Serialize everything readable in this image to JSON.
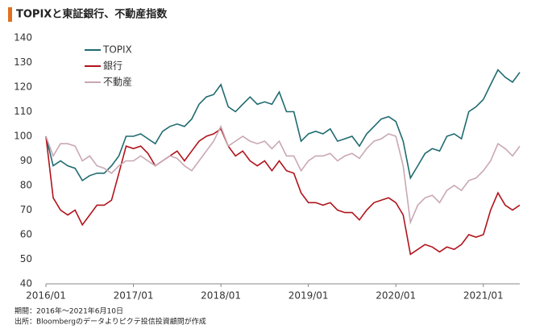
{
  "chart_data": {
    "type": "line",
    "title": "TOPIXと東証銀行、不動産指数",
    "notes": [
      "期間：2016年～2021年6月10日",
      "出所：Bloombergのデータよりピクテ投信投資顧問が作成"
    ],
    "x": [
      "2016/01",
      "2016/02",
      "2016/03",
      "2016/04",
      "2016/05",
      "2016/06",
      "2016/07",
      "2016/08",
      "2016/09",
      "2016/10",
      "2016/11",
      "2016/12",
      "2017/01",
      "2017/02",
      "2017/03",
      "2017/04",
      "2017/05",
      "2017/06",
      "2017/07",
      "2017/08",
      "2017/09",
      "2017/10",
      "2017/11",
      "2017/12",
      "2018/01",
      "2018/02",
      "2018/03",
      "2018/04",
      "2018/05",
      "2018/06",
      "2018/07",
      "2018/08",
      "2018/09",
      "2018/10",
      "2018/11",
      "2018/12",
      "2019/01",
      "2019/02",
      "2019/03",
      "2019/04",
      "2019/05",
      "2019/06",
      "2019/07",
      "2019/08",
      "2019/09",
      "2019/10",
      "2019/11",
      "2019/12",
      "2020/01",
      "2020/02",
      "2020/03",
      "2020/04",
      "2020/05",
      "2020/06",
      "2020/07",
      "2020/08",
      "2020/09",
      "2020/10",
      "2020/11",
      "2020/12",
      "2021/01",
      "2021/02",
      "2021/03",
      "2021/04",
      "2021/05",
      "2021/06"
    ],
    "series": [
      {
        "name": "TOPIX",
        "color": "#1f6b70",
        "values": [
          100,
          88,
          90,
          88,
          87,
          82,
          84,
          85,
          85,
          88,
          92,
          100,
          100,
          101,
          99,
          97,
          102,
          104,
          105,
          104,
          107,
          113,
          116,
          117,
          121,
          112,
          110,
          113,
          116,
          113,
          114,
          113,
          118,
          110,
          110,
          98,
          101,
          102,
          101,
          103,
          98,
          99,
          100,
          96,
          101,
          104,
          107,
          108,
          106,
          98,
          83,
          88,
          93,
          95,
          94,
          100,
          101,
          99,
          110,
          112,
          115,
          121,
          127,
          124,
          122,
          126
        ]
      },
      {
        "name": "銀行",
        "color": "#b0141c",
        "values": [
          100,
          75,
          70,
          68,
          70,
          64,
          68,
          72,
          72,
          74,
          85,
          96,
          95,
          96,
          93,
          88,
          90,
          92,
          94,
          90,
          94,
          98,
          100,
          101,
          103,
          96,
          92,
          94,
          90,
          88,
          90,
          86,
          90,
          86,
          85,
          77,
          73,
          73,
          72,
          73,
          70,
          69,
          69,
          66,
          70,
          73,
          74,
          75,
          73,
          68,
          52,
          54,
          56,
          55,
          53,
          55,
          54,
          56,
          60,
          59,
          60,
          70,
          77,
          72,
          70,
          72
        ]
      },
      {
        "name": "不動産",
        "color": "#c9a8b4",
        "values": [
          100,
          92,
          97,
          97,
          96,
          90,
          92,
          88,
          87,
          85,
          88,
          90,
          90,
          92,
          90,
          88,
          90,
          92,
          91,
          88,
          86,
          90,
          94,
          98,
          104,
          96,
          98,
          100,
          98,
          97,
          98,
          95,
          98,
          92,
          92,
          86,
          90,
          92,
          92,
          93,
          90,
          92,
          93,
          91,
          95,
          98,
          99,
          101,
          100,
          88,
          65,
          72,
          75,
          76,
          73,
          78,
          80,
          78,
          82,
          83,
          86,
          90,
          97,
          95,
          92,
          96
        ]
      }
    ],
    "xlim": [
      "2016/01",
      "2021/06"
    ],
    "xticks": [
      "2016/01",
      "2017/01",
      "2018/01",
      "2019/01",
      "2020/01",
      "2021/01"
    ],
    "ylim": [
      40,
      140
    ],
    "yticks": [
      40,
      50,
      60,
      70,
      80,
      90,
      100,
      110,
      120,
      130,
      140
    ],
    "grid": false,
    "legend": "top-left"
  }
}
